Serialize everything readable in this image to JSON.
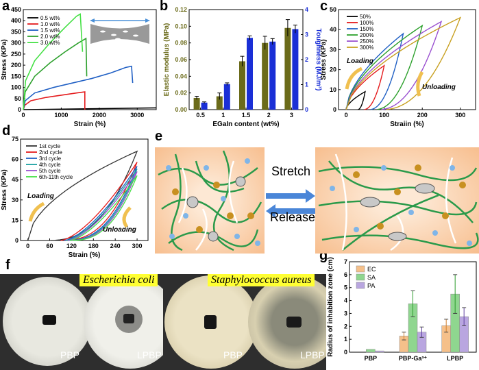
{
  "panel_labels": {
    "a": "a",
    "b": "b",
    "c": "c",
    "d": "d",
    "e": "e",
    "f": "f",
    "g": "g"
  },
  "colors": {
    "black": "#000000",
    "red": "#e41a1c",
    "blue": "#1f5fc4",
    "green": "#2ca02c",
    "lime": "#44e044",
    "olive": "#6b6b1a",
    "navy": "#1a2fd6",
    "orange": "#f0c050"
  },
  "chart_data": [
    {
      "panel": "a",
      "type": "line",
      "xlabel": "Strain (%)",
      "ylabel": "Stress (KPa)",
      "xlim": [
        0,
        3500
      ],
      "ylim": [
        0,
        450
      ],
      "xticks": [
        0,
        1000,
        2000,
        3000
      ],
      "yticks": [
        0,
        50,
        100,
        150,
        200,
        250,
        300,
        350,
        400,
        450
      ],
      "series": [
        {
          "name": "0.5 wt%",
          "color": "#000000",
          "points": [
            [
              0,
              0
            ],
            [
              3500,
              8
            ]
          ]
        },
        {
          "name": "1.0 wt%",
          "color": "#e41a1c",
          "points": [
            [
              0,
              0
            ],
            [
              40,
              20
            ],
            [
              200,
              40
            ],
            [
              600,
              55
            ],
            [
              1000,
              65
            ],
            [
              1400,
              75
            ],
            [
              1620,
              80
            ],
            [
              1620,
              0
            ]
          ]
        },
        {
          "name": "1.5 wt%",
          "color": "#1f5fc4",
          "points": [
            [
              0,
              0
            ],
            [
              50,
              40
            ],
            [
              300,
              75
            ],
            [
              800,
              100
            ],
            [
              1300,
              120
            ],
            [
              1800,
              140
            ],
            [
              2300,
              165
            ],
            [
              2700,
              190
            ],
            [
              2850,
              195
            ],
            [
              2880,
              120
            ]
          ]
        },
        {
          "name": "2.0 wt%",
          "color": "#2ca02c",
          "points": [
            [
              0,
              0
            ],
            [
              50,
              80
            ],
            [
              300,
              150
            ],
            [
              700,
              210
            ],
            [
              1100,
              260
            ],
            [
              1450,
              300
            ],
            [
              1650,
              320
            ],
            [
              1670,
              150
            ]
          ]
        },
        {
          "name": "3.0 wt%",
          "color": "#44e044",
          "points": [
            [
              0,
              0
            ],
            [
              60,
              130
            ],
            [
              300,
              220
            ],
            [
              700,
              300
            ],
            [
              1100,
              370
            ],
            [
              1400,
              420
            ],
            [
              1500,
              430
            ],
            [
              1560,
              260
            ]
          ]
        }
      ]
    },
    {
      "panel": "b",
      "type": "bar",
      "xlabel": "EGaIn content (wt%)",
      "ylabel": "Elastic modulus (MPa)",
      "ylabel_right": "Toughness (MJ/m³)",
      "categories": [
        "0.5",
        "1",
        "1.5",
        "2",
        "3"
      ],
      "ylim": [
        0,
        0.12
      ],
      "ylim_right": [
        0,
        4
      ],
      "yticks": [
        0,
        0.02,
        0.04,
        0.06,
        0.08,
        0.1,
        0.12
      ],
      "yticks_right": [
        0,
        1,
        2,
        3,
        4
      ],
      "series": [
        {
          "name": "Elastic modulus",
          "color": "#6b6b1a",
          "values": [
            0.014,
            0.016,
            0.058,
            0.08,
            0.098
          ],
          "errors": [
            0.002,
            0.004,
            0.006,
            0.008,
            0.01
          ]
        },
        {
          "name": "Toughness",
          "color": "#1a2fd6",
          "values": [
            0.28,
            1.02,
            2.87,
            2.72,
            3.22
          ],
          "errors": [
            0.03,
            0.05,
            0.08,
            0.12,
            0.16
          ]
        }
      ]
    },
    {
      "panel": "c",
      "type": "line",
      "xlabel": "Straiin (%)",
      "ylabel": "Stress (KPa)",
      "xlim": [
        -20,
        340
      ],
      "ylim": [
        0,
        50
      ],
      "xticks": [
        0,
        100,
        200,
        300
      ],
      "yticks": [
        0,
        10,
        20,
        30,
        40,
        50
      ],
      "annotations": [
        "Loading",
        "Unloading"
      ],
      "series": [
        {
          "name": "50%",
          "color": "#000000",
          "strain": 50,
          "peak": 9,
          "residual": 30
        },
        {
          "name": "100%",
          "color": "#e41a1c",
          "strain": 100,
          "peak": 22,
          "residual": 45
        },
        {
          "name": "150%",
          "color": "#1f5fc4",
          "strain": 150,
          "peak": 38,
          "residual": 60
        },
        {
          "name": "200%",
          "color": "#2ca02c",
          "strain": 200,
          "peak": 42,
          "residual": 75
        },
        {
          "name": "250%",
          "color": "#9a50d0",
          "strain": 250,
          "peak": 44,
          "residual": 85
        },
        {
          "name": "300%",
          "color": "#c8a020",
          "strain": 300,
          "peak": 46,
          "residual": 95
        }
      ]
    },
    {
      "panel": "d",
      "type": "line",
      "xlabel": "Strain (%)",
      "ylabel": "Stress (KPa)",
      "xlim": [
        -20,
        330
      ],
      "ylim": [
        0,
        75
      ],
      "xticks": [
        0,
        60,
        120,
        180,
        240,
        300
      ],
      "yticks": [
        0,
        15,
        30,
        45,
        60,
        75
      ],
      "annotations": [
        "Loading",
        "Unloading"
      ],
      "series": [
        {
          "name": "1st cycle",
          "color": "#333333",
          "peak": 66,
          "residual": 50,
          "first": true
        },
        {
          "name": "2nd cycle",
          "color": "#e41a1c",
          "peak": 58,
          "residual": 90
        },
        {
          "name": "3rd cycle",
          "color": "#1f5fc4",
          "peak": 55,
          "residual": 100
        },
        {
          "name": "4th cycle",
          "color": "#1aa0a0",
          "peak": 53,
          "residual": 105
        },
        {
          "name": "5th cycle",
          "color": "#9a50d0",
          "peak": 51,
          "residual": 110
        },
        {
          "name": "6th-11th cycle",
          "color": "#44e044",
          "peak": 48,
          "residual": 115
        }
      ]
    },
    {
      "panel": "g",
      "type": "bar",
      "xlabel": "",
      "ylabel": "Radius of inhabition zone (cm)",
      "categories": [
        "PBP",
        "PBP-Ga³⁺",
        "LPBP"
      ],
      "ylim": [
        0,
        7
      ],
      "yticks": [
        0,
        1,
        2,
        3,
        4,
        5,
        6,
        7
      ],
      "series": [
        {
          "name": "EC",
          "color": "#f5c08a",
          "values": [
            0,
            1.25,
            2.05
          ],
          "errors": [
            0,
            0.3,
            0.5
          ]
        },
        {
          "name": "SA",
          "color": "#8fd68f",
          "values": [
            0.22,
            3.75,
            4.5
          ],
          "errors": [
            0,
            1.0,
            1.5
          ]
        },
        {
          "name": "PA",
          "color": "#b9a6e0",
          "values": [
            0.1,
            1.55,
            2.75
          ],
          "errors": [
            0,
            0.4,
            0.7
          ]
        }
      ]
    }
  ],
  "schematic": {
    "stretch_label": "Stretch",
    "release_label": "Release"
  },
  "photos": {
    "ecoli_title": "Escherichia coli",
    "saureus_title": "Staphylococcus aureus",
    "dish_labels": [
      "PBP",
      "LPBP",
      "PBP",
      "LPBP"
    ]
  }
}
